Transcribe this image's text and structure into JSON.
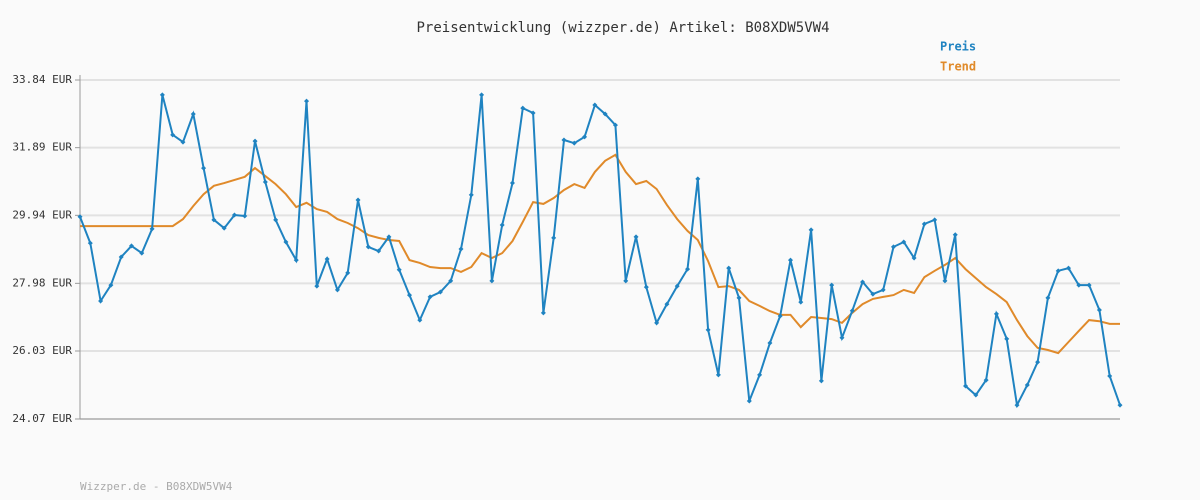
{
  "chart_data": {
    "type": "line",
    "title": "Preisentwicklung (wizzper.de) Artikel: B08XDW5VW4",
    "footer": "Wizzper.de - B08XDW5VW4",
    "categories": [
      null,
      null,
      null,
      null,
      null,
      null,
      null,
      null,
      null,
      null,
      null,
      null,
      null,
      null,
      null,
      null,
      null,
      null,
      null,
      null,
      null,
      null,
      null,
      null,
      null,
      null,
      null,
      null,
      null,
      null,
      null,
      null,
      null,
      null,
      null,
      null,
      null,
      null,
      null,
      null,
      null,
      null,
      null,
      null,
      null,
      null,
      null,
      null,
      null,
      null,
      null,
      null,
      null,
      null,
      null,
      null,
      null,
      null,
      null,
      null,
      null,
      null,
      null,
      null,
      null,
      null,
      null,
      null,
      null,
      null,
      null,
      null,
      null,
      null,
      null,
      null,
      null,
      null,
      null,
      null,
      null,
      null,
      null,
      null,
      null,
      null,
      null,
      null,
      null,
      null,
      null,
      null,
      null,
      null,
      null,
      null,
      null,
      null,
      null,
      null,
      null,
      null
    ],
    "series": [
      {
        "name": "Preis",
        "color": "#1f83c1",
        "markers": true,
        "values": [
          29.9,
          29.14,
          27.47,
          27.93,
          28.74,
          29.06,
          28.85,
          29.55,
          33.41,
          32.26,
          32.05,
          32.86,
          31.3,
          29.81,
          29.57,
          29.95,
          29.92,
          32.08,
          30.9,
          29.81,
          29.17,
          28.65,
          33.23,
          27.9,
          28.68,
          27.79,
          28.28,
          30.38,
          29.03,
          28.91,
          29.32,
          28.37,
          27.64,
          26.92,
          27.59,
          27.73,
          28.05,
          28.97,
          30.53,
          33.41,
          28.05,
          29.66,
          30.87,
          33.03,
          32.89,
          27.13,
          29.29,
          32.11,
          32.02,
          32.2,
          33.12,
          32.86,
          32.54,
          28.05,
          29.32,
          27.87,
          26.84,
          27.38,
          27.9,
          28.39,
          30.99,
          26.64,
          25.34,
          28.42,
          27.56,
          24.59,
          25.34,
          26.26,
          27.04,
          28.65,
          27.44,
          29.52,
          25.17,
          27.93,
          26.41,
          27.19,
          28.02,
          27.67,
          27.79,
          29.03,
          29.17,
          28.71,
          29.69,
          29.81,
          28.05,
          29.38,
          25.02,
          24.76,
          25.19,
          27.1,
          26.38,
          24.47,
          25.05,
          25.71,
          27.56,
          28.34,
          28.42,
          27.93,
          27.93,
          27.21,
          25.31,
          24.47
        ]
      },
      {
        "name": "Trend",
        "color": "#e08a2a",
        "markers": false,
        "values": [
          29.63,
          29.63,
          29.63,
          29.63,
          29.63,
          29.63,
          29.63,
          29.63,
          29.63,
          29.63,
          29.83,
          30.21,
          30.55,
          30.79,
          30.87,
          30.96,
          31.05,
          31.3,
          31.07,
          30.84,
          30.55,
          30.18,
          30.3,
          30.12,
          30.04,
          29.83,
          29.72,
          29.57,
          29.37,
          29.29,
          29.23,
          29.2,
          28.65,
          28.57,
          28.45,
          28.42,
          28.42,
          28.31,
          28.45,
          28.85,
          28.71,
          28.85,
          29.2,
          29.75,
          30.32,
          30.27,
          30.44,
          30.67,
          30.84,
          30.73,
          31.19,
          31.51,
          31.68,
          31.19,
          30.84,
          30.93,
          30.7,
          30.24,
          29.83,
          29.49,
          29.23,
          28.62,
          27.87,
          27.9,
          27.79,
          27.47,
          27.33,
          27.18,
          27.07,
          27.07,
          26.72,
          27.01,
          26.98,
          26.95,
          26.84,
          27.13,
          27.38,
          27.53,
          27.59,
          27.64,
          27.79,
          27.7,
          28.16,
          28.34,
          28.51,
          28.71,
          28.39,
          28.13,
          27.87,
          27.67,
          27.44,
          26.92,
          26.46,
          26.12,
          26.06,
          25.97,
          26.29,
          26.61,
          26.92,
          26.89,
          26.81,
          26.81
        ]
      }
    ],
    "ylim": [
      24.07,
      33.84
    ],
    "yticks": [
      {
        "value": 24.07,
        "label": "24.07 EUR"
      },
      {
        "value": 26.03,
        "label": "26.03 EUR"
      },
      {
        "value": 27.98,
        "label": "27.98 EUR"
      },
      {
        "value": 29.94,
        "label": "29.94 EUR"
      },
      {
        "value": 31.89,
        "label": "31.89 EUR"
      },
      {
        "value": 33.84,
        "label": "33.84 EUR"
      }
    ],
    "grid": true,
    "legend": "top-right"
  }
}
